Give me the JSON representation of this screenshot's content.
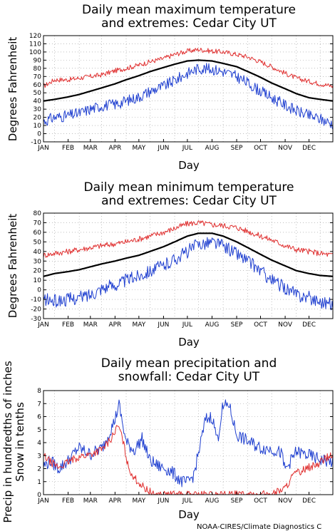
{
  "credit": "NOAA-CIRES/Climate Diagnostics C",
  "colors": {
    "max_extreme": "#e03030",
    "mean": "#000000",
    "min_extreme": "#2040d0",
    "precip": "#2040d0",
    "snow": "#e03030",
    "grid": "#999999"
  },
  "chart_data": [
    {
      "type": "line",
      "title": [
        "Daily mean maximum temperature",
        "and extremes: Cedar City UT"
      ],
      "xlabel": "Day",
      "ylabel": "Degrees Fahrenheit",
      "ylim": [
        -10,
        120
      ],
      "yticks": [
        -10,
        0,
        10,
        20,
        30,
        40,
        50,
        60,
        70,
        80,
        90,
        100,
        110,
        120
      ],
      "categories": [
        "JAN",
        "FEB",
        "MAR",
        "APR",
        "MAY",
        "JUN",
        "JUL",
        "AUG",
        "SEP",
        "OCT",
        "NOV",
        "DEC"
      ],
      "grid": true,
      "x_unit": "day of year",
      "series": [
        {
          "role": "max_extreme",
          "x": [
            1,
            15,
            32,
            46,
            60,
            74,
            91,
            105,
            121,
            135,
            152,
            166,
            182,
            196,
            213,
            227,
            244,
            258,
            274,
            288,
            305,
            319,
            335,
            349,
            365
          ],
          "values": [
            58,
            66,
            66,
            68,
            70,
            72,
            77,
            80,
            84,
            88,
            92,
            97,
            101,
            103,
            101,
            100,
            97,
            94,
            88,
            82,
            74,
            68,
            64,
            61,
            58
          ]
        },
        {
          "role": "mean",
          "x": [
            1,
            15,
            32,
            46,
            60,
            74,
            91,
            105,
            121,
            135,
            152,
            166,
            182,
            196,
            213,
            227,
            244,
            258,
            274,
            288,
            305,
            319,
            335,
            349,
            365
          ],
          "values": [
            40,
            42,
            45,
            48,
            52,
            56,
            61,
            66,
            71,
            76,
            81,
            85,
            89,
            90,
            89,
            86,
            82,
            76,
            69,
            62,
            55,
            49,
            44,
            42,
            40
          ]
        },
        {
          "role": "min_extreme",
          "x": [
            1,
            15,
            32,
            46,
            60,
            74,
            91,
            105,
            121,
            135,
            152,
            166,
            182,
            196,
            213,
            227,
            244,
            258,
            274,
            288,
            305,
            319,
            335,
            349,
            365
          ],
          "values": [
            15,
            20,
            22,
            25,
            30,
            34,
            36,
            40,
            45,
            52,
            58,
            65,
            74,
            80,
            79,
            76,
            70,
            62,
            52,
            44,
            35,
            28,
            22,
            18,
            12
          ]
        }
      ]
    },
    {
      "type": "line",
      "title": [
        "Daily mean minimum temperature",
        "and extremes: Cedar City UT"
      ],
      "xlabel": "Day",
      "ylabel": "Degrees Fahrenheit",
      "ylim": [
        -30,
        80
      ],
      "yticks": [
        -30,
        -20,
        -10,
        0,
        10,
        20,
        30,
        40,
        50,
        60,
        70,
        80
      ],
      "categories": [
        "JAN",
        "FEB",
        "MAR",
        "APR",
        "MAY",
        "JUN",
        "JUL",
        "AUG",
        "SEP",
        "OCT",
        "NOV",
        "DEC"
      ],
      "grid": true,
      "x_unit": "day of year",
      "series": [
        {
          "role": "max_extreme",
          "x": [
            1,
            15,
            32,
            46,
            60,
            74,
            91,
            105,
            121,
            135,
            152,
            166,
            182,
            196,
            213,
            227,
            244,
            258,
            274,
            288,
            305,
            319,
            335,
            349,
            365
          ],
          "values": [
            36,
            38,
            40,
            42,
            44,
            46,
            48,
            50,
            53,
            56,
            60,
            64,
            69,
            70,
            68,
            67,
            65,
            61,
            56,
            52,
            46,
            42,
            40,
            38,
            36
          ]
        },
        {
          "role": "mean",
          "x": [
            1,
            15,
            32,
            46,
            60,
            74,
            91,
            105,
            121,
            135,
            152,
            166,
            182,
            196,
            213,
            227,
            244,
            258,
            274,
            288,
            305,
            319,
            335,
            349,
            365
          ],
          "values": [
            14,
            17,
            19,
            21,
            24,
            27,
            30,
            33,
            36,
            40,
            45,
            50,
            56,
            59,
            59,
            56,
            50,
            44,
            37,
            31,
            25,
            20,
            17,
            15,
            14
          ]
        },
        {
          "role": "min_extreme",
          "x": [
            1,
            15,
            32,
            46,
            60,
            74,
            91,
            105,
            121,
            135,
            152,
            166,
            182,
            196,
            213,
            227,
            244,
            258,
            274,
            288,
            305,
            319,
            335,
            349,
            365
          ],
          "values": [
            -10,
            -12,
            -10,
            -8,
            -5,
            2,
            5,
            10,
            15,
            20,
            25,
            32,
            40,
            48,
            50,
            46,
            38,
            30,
            20,
            10,
            2,
            -5,
            -8,
            -12,
            -15
          ]
        }
      ]
    },
    {
      "type": "line",
      "title": [
        "Daily mean precipitation and",
        "snowfall: Cedar City UT"
      ],
      "xlabel": "Day",
      "ylabel": [
        "Precip in hundredths of inches",
        "Snow in tenths"
      ],
      "ylim": [
        0,
        8
      ],
      "yticks": [
        0,
        1,
        2,
        3,
        4,
        5,
        6,
        7,
        8
      ],
      "categories": [
        "JAN",
        "FEB",
        "MAR",
        "APR",
        "MAY",
        "JUN",
        "JUL",
        "AUG",
        "SEP",
        "OCT",
        "NOV",
        "DEC"
      ],
      "grid": true,
      "x_unit": "day of year",
      "series": [
        {
          "role": "precip",
          "x": [
            1,
            10,
            20,
            32,
            45,
            60,
            75,
            90,
            96,
            105,
            115,
            125,
            135,
            145,
            155,
            165,
            175,
            182,
            190,
            196,
            205,
            213,
            220,
            226,
            234,
            244,
            258,
            274,
            288,
            300,
            305,
            319,
            335,
            349,
            365
          ],
          "values": [
            2.2,
            2.6,
            2.0,
            2.6,
            3.6,
            3.1,
            3.6,
            5.6,
            6.9,
            4.0,
            3.4,
            4.3,
            2.6,
            2.2,
            2.0,
            1.6,
            1.0,
            0.9,
            1.5,
            3.2,
            5.8,
            6.0,
            4.2,
            6.6,
            7.0,
            4.6,
            4.1,
            3.6,
            3.5,
            3.2,
            1.9,
            3.3,
            3.0,
            2.7,
            2.5
          ]
        },
        {
          "role": "snow",
          "x": [
            1,
            10,
            20,
            32,
            45,
            60,
            75,
            85,
            95,
            100,
            108,
            118,
            128,
            140,
            155,
            244,
            274,
            290,
            305,
            315,
            330,
            345,
            355,
            365
          ],
          "values": [
            3.0,
            2.5,
            2.1,
            2.5,
            2.9,
            3.1,
            3.5,
            4.2,
            5.3,
            4.4,
            2.0,
            1.1,
            0.5,
            0.0,
            0.0,
            0.0,
            0.0,
            0.1,
            0.5,
            1.5,
            2.0,
            2.3,
            2.8,
            3.0
          ]
        }
      ]
    }
  ]
}
